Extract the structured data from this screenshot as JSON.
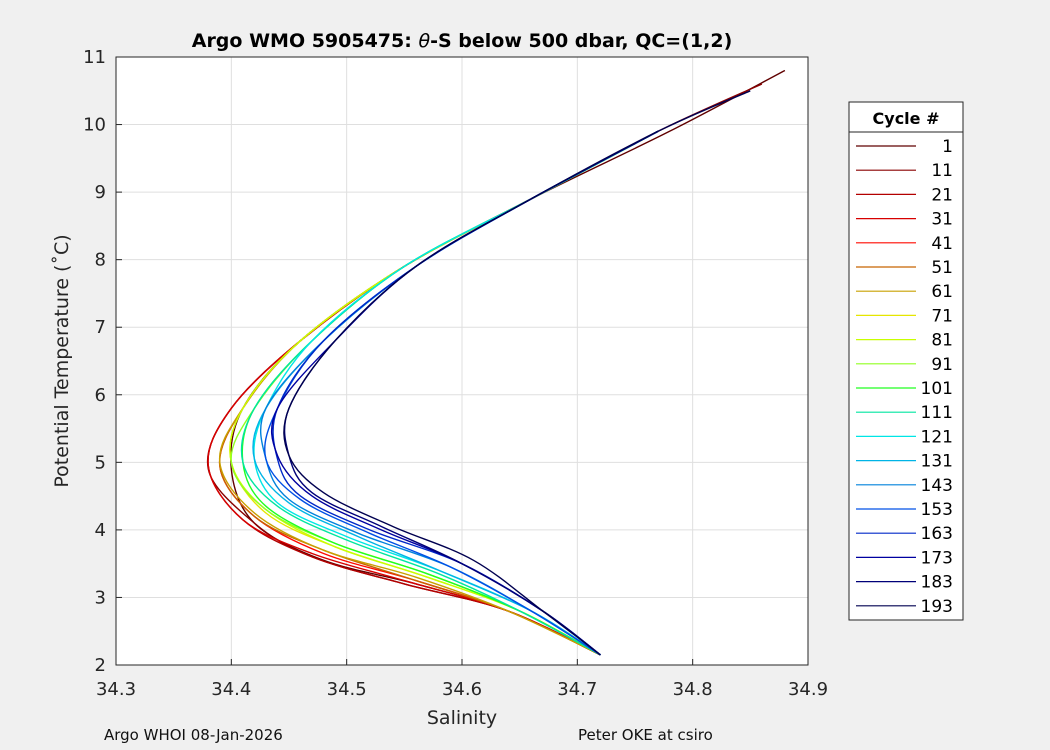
{
  "chart_data": {
    "type": "line",
    "title_prefix": "Argo WMO 5905475: ",
    "title_symbol": "θ",
    "title_suffix": "-S below 500 dbar,  QC=(1,2)",
    "xlabel": "Salinity",
    "ylabel": "Potential Temperature (˚C)",
    "xlim": [
      34.3,
      34.9
    ],
    "ylim": [
      2,
      11
    ],
    "xticks": [
      34.3,
      34.4,
      34.5,
      34.6,
      34.7,
      34.8,
      34.9
    ],
    "xtick_labels": [
      "34.3",
      "34.4",
      "34.5",
      "34.6",
      "34.7",
      "34.8",
      "34.9"
    ],
    "yticks": [
      2,
      3,
      4,
      5,
      6,
      7,
      8,
      9,
      10,
      11
    ],
    "ytick_labels": [
      "2",
      "3",
      "4",
      "5",
      "6",
      "7",
      "8",
      "9",
      "10",
      "11"
    ],
    "grid": true,
    "legend_title": "Cycle #",
    "legend_placement": "right, outside",
    "series": [
      {
        "name": "1",
        "color": "#600000",
        "x": [
          34.72,
          34.64,
          34.56,
          34.48,
          34.42,
          34.4,
          34.41,
          34.46,
          34.55,
          34.66,
          34.78,
          34.88
        ],
        "y": [
          2.15,
          2.8,
          3.2,
          3.55,
          4.1,
          4.9,
          5.8,
          6.8,
          7.9,
          8.9,
          9.9,
          10.8
        ]
      },
      {
        "name": "11",
        "color": "#8a0000",
        "x": [
          34.72,
          34.64,
          34.55,
          34.47,
          34.42,
          34.38,
          34.4,
          34.46,
          34.55,
          34.66,
          34.77,
          34.86
        ],
        "y": [
          2.15,
          2.8,
          3.2,
          3.6,
          4.1,
          4.9,
          5.8,
          6.8,
          7.9,
          8.9,
          9.9,
          10.6
        ]
      },
      {
        "name": "21",
        "color": "#b30000",
        "x": [
          34.72,
          34.64,
          34.55,
          34.47,
          34.41,
          34.38,
          34.4,
          34.46,
          34.55,
          34.66,
          34.77
        ],
        "y": [
          2.15,
          2.8,
          3.2,
          3.6,
          4.15,
          4.95,
          5.8,
          6.8,
          7.9,
          8.9,
          9.9
        ]
      },
      {
        "name": "31",
        "color": "#d70000",
        "x": [
          34.72,
          34.64,
          34.55,
          34.47,
          34.41,
          34.38,
          34.4,
          34.46,
          34.55,
          34.66,
          34.77
        ],
        "y": [
          2.15,
          2.8,
          3.25,
          3.65,
          4.15,
          4.95,
          5.8,
          6.8,
          7.9,
          8.9,
          9.9
        ]
      },
      {
        "name": "41",
        "color": "#ff0a00",
        "x": [
          34.72,
          34.64,
          34.56,
          34.48,
          34.42,
          34.39,
          34.41,
          34.46,
          34.55,
          34.66,
          34.77
        ],
        "y": [
          2.15,
          2.8,
          3.25,
          3.65,
          4.2,
          4.95,
          5.8,
          6.8,
          7.9,
          8.9,
          9.9
        ]
      },
      {
        "name": "51",
        "color": "#c86400",
        "x": [
          34.72,
          34.64,
          34.56,
          34.48,
          34.42,
          34.39,
          34.41,
          34.46,
          34.55,
          34.66,
          34.77
        ],
        "y": [
          2.15,
          2.8,
          3.25,
          3.7,
          4.2,
          4.95,
          5.8,
          6.8,
          7.9,
          8.9,
          9.9
        ]
      },
      {
        "name": "61",
        "color": "#c8a000",
        "x": [
          34.72,
          34.64,
          34.56,
          34.48,
          34.42,
          34.39,
          34.41,
          34.46,
          34.55,
          34.66,
          34.77
        ],
        "y": [
          2.15,
          2.8,
          3.3,
          3.7,
          4.25,
          5.0,
          5.8,
          6.8,
          7.9,
          8.9,
          9.9
        ]
      },
      {
        "name": "71",
        "color": "#e6e600",
        "x": [
          34.72,
          34.65,
          34.57,
          34.49,
          34.43,
          34.4,
          34.41,
          34.46,
          34.55,
          34.66,
          34.77
        ],
        "y": [
          2.15,
          2.8,
          3.3,
          3.75,
          4.25,
          5.0,
          5.8,
          6.8,
          7.9,
          8.9,
          9.9
        ]
      },
      {
        "name": "81",
        "color": "#c8ff00",
        "x": [
          34.72,
          34.65,
          34.57,
          34.49,
          34.43,
          34.4,
          34.41,
          34.46,
          34.55,
          34.66,
          34.77
        ],
        "y": [
          2.15,
          2.8,
          3.3,
          3.75,
          4.3,
          5.0,
          5.8,
          6.8,
          7.9,
          8.9,
          9.9
        ]
      },
      {
        "name": "91",
        "color": "#90ff20",
        "x": [
          34.72,
          34.65,
          34.57,
          34.49,
          34.43,
          34.4,
          34.42,
          34.47,
          34.55,
          34.66,
          34.77
        ],
        "y": [
          2.15,
          2.8,
          3.35,
          3.8,
          4.3,
          5.0,
          5.8,
          6.8,
          7.9,
          8.9,
          9.9
        ]
      },
      {
        "name": "101",
        "color": "#20ff20",
        "x": [
          34.72,
          34.65,
          34.57,
          34.49,
          34.43,
          34.41,
          34.42,
          34.47,
          34.55,
          34.66,
          34.77
        ],
        "y": [
          2.15,
          2.8,
          3.35,
          3.8,
          4.35,
          5.0,
          5.8,
          6.8,
          7.9,
          8.9,
          9.9
        ]
      },
      {
        "name": "111",
        "color": "#00e6a0",
        "x": [
          34.72,
          34.65,
          34.58,
          34.5,
          34.44,
          34.41,
          34.42,
          34.47,
          34.55,
          34.66,
          34.77
        ],
        "y": [
          2.15,
          2.8,
          3.35,
          3.85,
          4.35,
          5.0,
          5.8,
          6.8,
          7.9,
          8.9,
          9.9
        ]
      },
      {
        "name": "121",
        "color": "#00e6e6",
        "x": [
          34.72,
          34.66,
          34.58,
          34.5,
          34.44,
          34.42,
          34.43,
          34.47,
          34.55,
          34.66,
          34.77
        ],
        "y": [
          2.15,
          2.8,
          3.4,
          3.9,
          4.4,
          5.05,
          5.8,
          6.8,
          7.9,
          8.9,
          9.9
        ]
      },
      {
        "name": "131",
        "color": "#00b4e6",
        "x": [
          34.72,
          34.66,
          34.58,
          34.51,
          34.45,
          34.42,
          34.43,
          34.48,
          34.56,
          34.66,
          34.77
        ],
        "y": [
          2.15,
          2.8,
          3.4,
          3.9,
          4.4,
          5.05,
          5.8,
          6.8,
          7.9,
          8.9,
          9.9
        ]
      },
      {
        "name": "143",
        "color": "#0082dc",
        "x": [
          34.72,
          34.66,
          34.59,
          34.51,
          34.45,
          34.43,
          34.43,
          34.48,
          34.56,
          34.66,
          34.77
        ],
        "y": [
          2.15,
          2.8,
          3.45,
          3.95,
          4.45,
          5.05,
          5.8,
          6.8,
          7.9,
          8.9,
          9.9
        ]
      },
      {
        "name": "153",
        "color": "#0050e6",
        "x": [
          34.72,
          34.66,
          34.59,
          34.52,
          34.46,
          34.43,
          34.44,
          34.48,
          34.56,
          34.66,
          34.77
        ],
        "y": [
          2.15,
          2.8,
          3.45,
          3.95,
          4.45,
          5.05,
          5.8,
          6.8,
          7.9,
          8.9,
          9.9
        ]
      },
      {
        "name": "163",
        "color": "#0028c8",
        "x": [
          34.72,
          34.67,
          34.6,
          34.52,
          34.46,
          34.44,
          34.44,
          34.48,
          34.56,
          34.66,
          34.77
        ],
        "y": [
          2.15,
          2.8,
          3.5,
          4.0,
          4.5,
          5.05,
          5.8,
          6.8,
          7.9,
          8.9,
          9.9
        ]
      },
      {
        "name": "173",
        "color": "#0000a0",
        "x": [
          34.72,
          34.67,
          34.6,
          34.53,
          34.47,
          34.44,
          34.44,
          34.49,
          34.56,
          34.66,
          34.77
        ],
        "y": [
          2.15,
          2.8,
          3.5,
          4.0,
          4.5,
          5.1,
          5.8,
          6.8,
          7.9,
          8.9,
          9.9
        ]
      },
      {
        "name": "183",
        "color": "#000078",
        "x": [
          34.72,
          34.67,
          34.6,
          34.53,
          34.47,
          34.45,
          34.45,
          34.49,
          34.56,
          34.66,
          34.77
        ],
        "y": [
          2.15,
          2.8,
          3.5,
          4.05,
          4.55,
          5.1,
          5.8,
          6.8,
          7.9,
          8.9,
          9.9
        ]
      },
      {
        "name": "193",
        "color": "#000050",
        "x": [
          34.72,
          34.67,
          34.61,
          34.54,
          34.48,
          34.45,
          34.45,
          34.49,
          34.56,
          34.66,
          34.77,
          34.85
        ],
        "y": [
          2.15,
          2.8,
          3.55,
          4.05,
          4.55,
          5.1,
          5.8,
          6.8,
          7.9,
          8.9,
          9.9,
          10.5
        ]
      }
    ]
  },
  "footer": {
    "left": "Argo WHOI 08-Jan-2026",
    "right": "Peter OKE at csiro"
  }
}
